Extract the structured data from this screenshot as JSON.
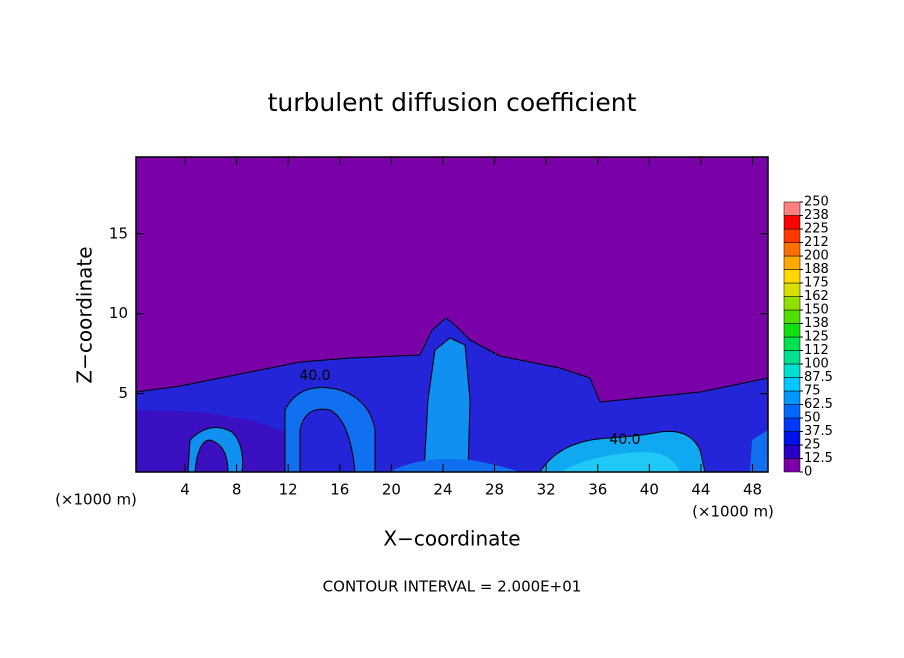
{
  "chart_data": {
    "type": "contour",
    "title": "turbulent diffusion coefficient",
    "x_label": "X−coordinate",
    "y_label": "Z−coordinate",
    "x_unit": "(×1000 m)",
    "footnote": "CONTOUR INTERVAL = 2.000E+01",
    "contour_labels": [
      "40.0",
      "40.0"
    ],
    "xlim": [
      0.2,
      49.2
    ],
    "xticks": [
      4,
      8,
      12,
      16,
      20,
      24,
      28,
      32,
      36,
      40,
      44,
      48
    ],
    "ylim": [
      0.1,
      19.8
    ],
    "yticks": [
      5,
      10,
      15
    ],
    "levels": [
      0,
      12.5,
      25,
      37.5,
      50,
      62.5,
      75,
      87.5,
      100,
      {
        "value": 112.5,
        "label": "112"
      },
      125,
      {
        "value": 137.5,
        "label": "138"
      },
      150,
      {
        "value": 162.5,
        "label": "162"
      },
      175,
      {
        "value": 187.5,
        "label": "188"
      },
      200,
      {
        "value": 212.5,
        "label": "212"
      },
      225,
      {
        "value": 237.5,
        "label": "238"
      },
      250
    ],
    "level_colors": [
      "#7a00a8",
      "#2a00c8",
      "#0010e8",
      "#0038ff",
      "#0068ff",
      "#0098ff",
      "#00c8ff",
      "#00e0d0",
      "#00e090",
      "#00e050",
      "#10e010",
      "#50e000",
      "#90e000",
      "#d8e000",
      "#ffd800",
      "#ffa800",
      "#ff7000",
      "#ff3800",
      "#ff0000",
      "#ff8080"
    ]
  }
}
